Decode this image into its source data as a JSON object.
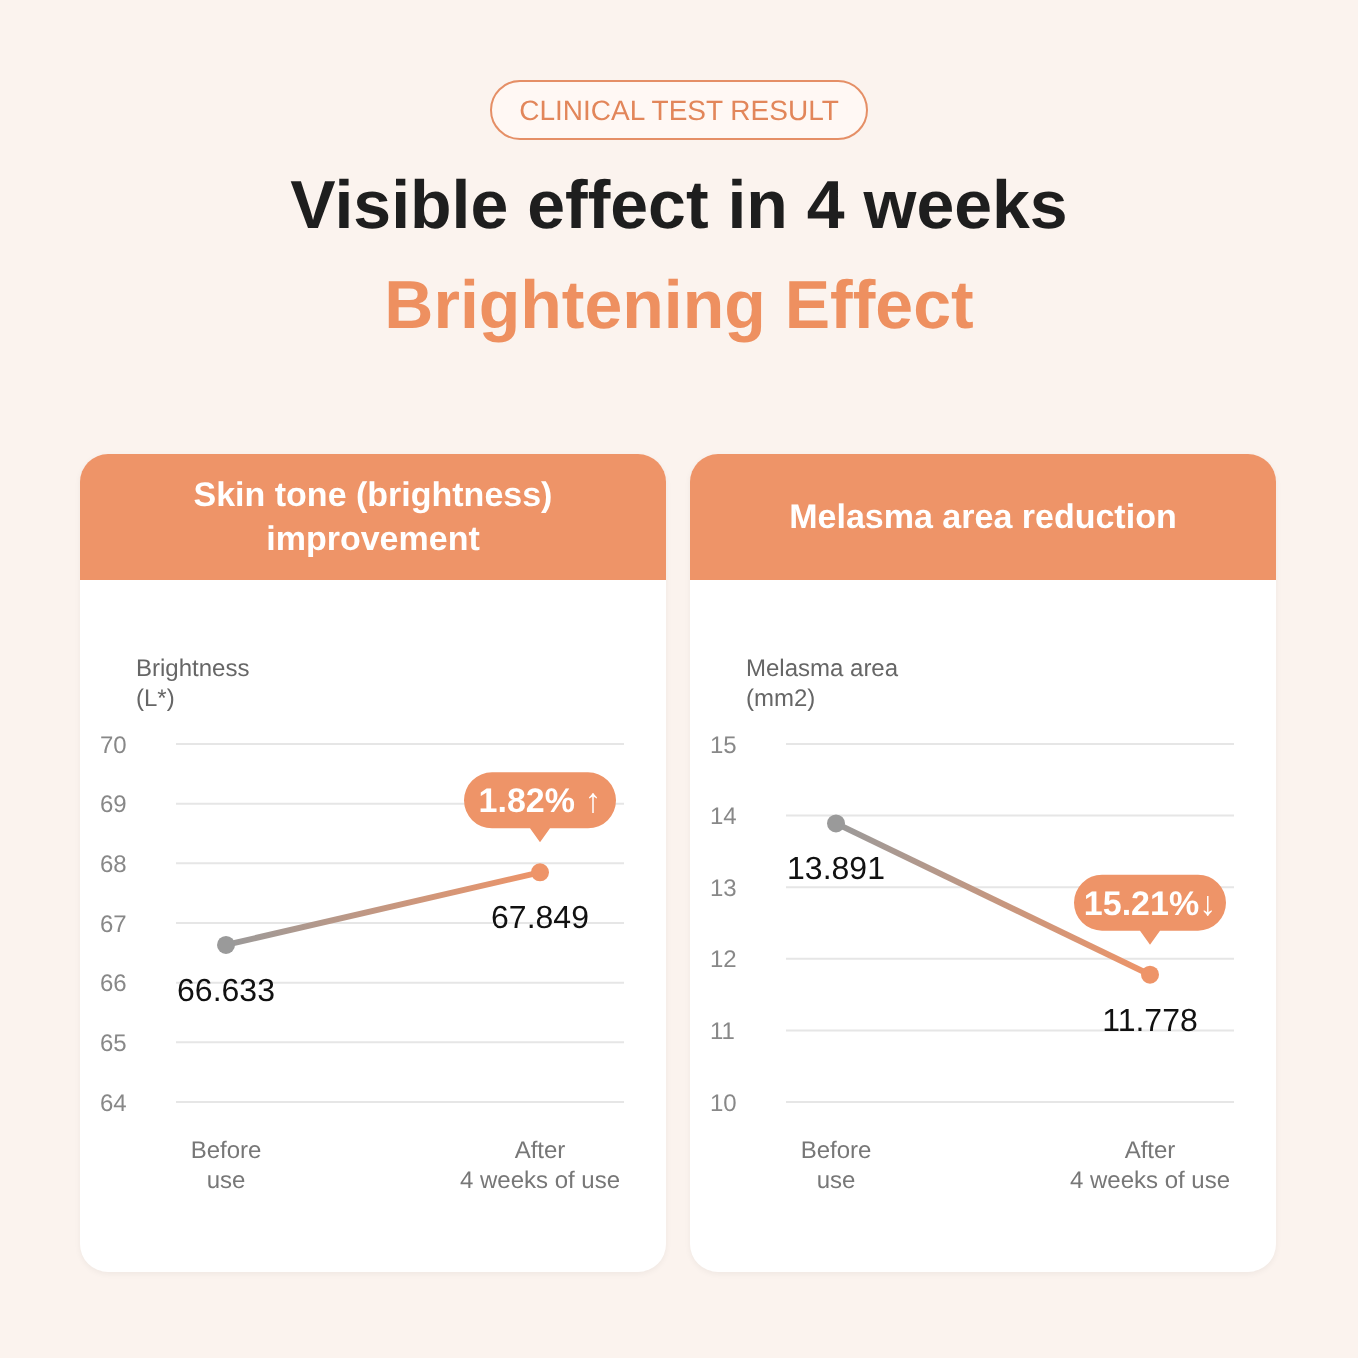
{
  "chart_data": [
    {
      "type": "line",
      "title": "Skin tone (brightness) improvement",
      "ylabel": "Brightness (L*)",
      "categories": [
        "Before use",
        "After 4 weeks of use"
      ],
      "series": [
        {
          "color": "#ee9468",
          "colors": [
            "#9a9a9a",
            "#ee9468"
          ],
          "values": [
            66.633,
            67.849
          ]
        }
      ],
      "ylim": [
        64,
        70
      ],
      "yticks": [
        64,
        65,
        66,
        67,
        68,
        69,
        70
      ],
      "grid": "y",
      "marker": "circle",
      "data_labels": true,
      "annotations": [
        "CLINICAL TEST RESULT",
        "Visible effect in 4 weeks",
        "Brightening Effect",
        {
          "text": "1.82% ↑",
          "x": "After 4 weeks of use",
          "y": 67.849
        }
      ]
    },
    {
      "type": "line",
      "title": "Melasma area reduction",
      "ylabel": "Melasma area (mm2)",
      "categories": [
        "Before use",
        "After 4 weeks of use"
      ],
      "series": [
        {
          "color": "#ee9468",
          "colors": [
            "#9a9a9a",
            "#ee9468"
          ],
          "values": [
            13.891,
            11.778
          ]
        }
      ],
      "ylim": [
        10,
        15
      ],
      "yticks": [
        10,
        11,
        12,
        13,
        14,
        15
      ],
      "grid": "y",
      "marker": "circle",
      "data_labels": true,
      "annotations": [
        {
          "text": "15.21%↓",
          "x": "After 4 weeks of use",
          "y": 11.778
        }
      ]
    }
  ]
}
